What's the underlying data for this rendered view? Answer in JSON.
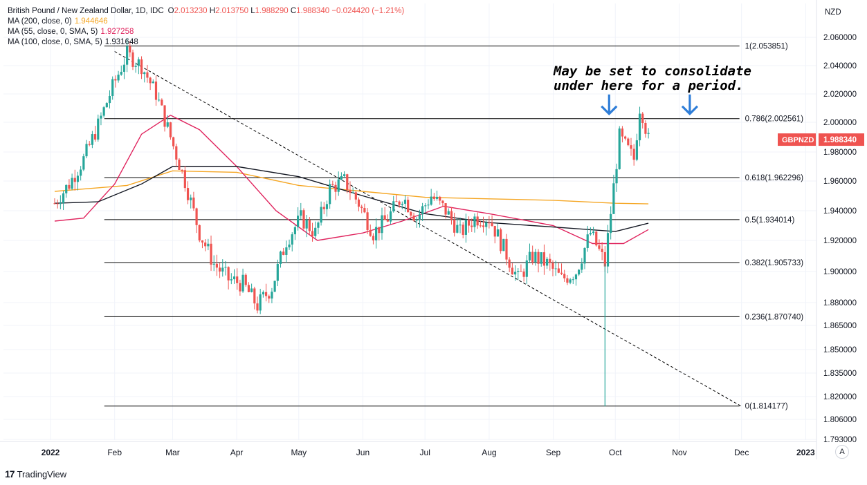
{
  "header": {
    "symbol": "British Pound / New Zealand Dollar, 1D, IDC",
    "o_label": "O",
    "o_value": "2.013230",
    "h_label": "H",
    "h_value": "2.013750",
    "l_label": "L",
    "l_value": "1.988290",
    "c_label": "C",
    "c_value": "1.988340",
    "change": "−0.024420 (−1.21%)"
  },
  "indicators": [
    {
      "label": "MA (200, close, 0)",
      "value": "1.944646",
      "color": "#f5a623"
    },
    {
      "label": "MA (55, close, 0, SMA, 5)",
      "value": "1.927258",
      "color": "#e0245e"
    },
    {
      "label": "MA (100, close, 0, SMA, 5)",
      "value": "1.931648",
      "color": "#131722"
    }
  ],
  "annotation": {
    "line1": "May be set to consolidate",
    "line2": "under here for a period."
  },
  "branding": {
    "name": "TradingView"
  },
  "auto_button": "A",
  "colors": {
    "up": "#26a69a",
    "down": "#ef5350",
    "price_tag": "#ef5350",
    "arrow": "#2f7ed8"
  },
  "chart_data": {
    "type": "candlestick",
    "currency": "NZD",
    "symbol_tag": "GBPNZD",
    "last_price": "1.988340",
    "y_axis_ticks": [
      "2.060000",
      "2.040000",
      "2.020000",
      "2.000000",
      "1.980000",
      "1.960000",
      "1.940000",
      "1.920000",
      "1.900000",
      "1.880000",
      "1.865000",
      "1.850000",
      "1.835000",
      "1.820000",
      "1.806000",
      "1.793000"
    ],
    "x_axis_ticks": [
      "2022",
      "Feb",
      "Mar",
      "Apr",
      "May",
      "Jun",
      "Jul",
      "Aug",
      "Sep",
      "Oct",
      "Nov",
      "Dec",
      "2023"
    ],
    "fib_levels": [
      {
        "ratio": 1,
        "price": 2.053851,
        "label": "1(2.053851)"
      },
      {
        "ratio": 0.786,
        "price": 2.002561,
        "label": "0.786(2.002561)"
      },
      {
        "ratio": 0.618,
        "price": 1.962296,
        "label": "0.618(1.962296)"
      },
      {
        "ratio": 0.5,
        "price": 1.934014,
        "label": "0.5(1.934014)"
      },
      {
        "ratio": 0.382,
        "price": 1.905733,
        "label": "0.382(1.905733)"
      },
      {
        "ratio": 0.236,
        "price": 1.87074,
        "label": "0.236(1.870740)"
      },
      {
        "ratio": 0,
        "price": 1.814177,
        "label": "0(1.814177)"
      }
    ],
    "trendline": {
      "from": {
        "date": "2022-02-01",
        "price": 2.05
      },
      "to": {
        "date": "2022-12-01",
        "price": 1.814
      }
    },
    "arrows": [
      {
        "date": "2022-09-28",
        "price": 2.005
      },
      {
        "date": "2022-11-06",
        "price": 2.005
      }
    ],
    "price_points": [
      {
        "date": "2022-01-03",
        "price": 1.945
      },
      {
        "date": "2022-01-10",
        "price": 1.958
      },
      {
        "date": "2022-01-17",
        "price": 1.975
      },
      {
        "date": "2022-01-24",
        "price": 1.998
      },
      {
        "date": "2022-01-31",
        "price": 2.025
      },
      {
        "date": "2022-02-07",
        "price": 2.048
      },
      {
        "date": "2022-02-14",
        "price": 2.04
      },
      {
        "date": "2022-02-21",
        "price": 2.02
      },
      {
        "date": "2022-02-28",
        "price": 1.99
      },
      {
        "date": "2022-03-07",
        "price": 1.96
      },
      {
        "date": "2022-03-14",
        "price": 1.925
      },
      {
        "date": "2022-03-21",
        "price": 1.905
      },
      {
        "date": "2022-03-28",
        "price": 1.895
      },
      {
        "date": "2022-04-04",
        "price": 1.892
      },
      {
        "date": "2022-04-11",
        "price": 1.878
      },
      {
        "date": "2022-04-18",
        "price": 1.89
      },
      {
        "date": "2022-04-25",
        "price": 1.92
      },
      {
        "date": "2022-05-02",
        "price": 1.935
      },
      {
        "date": "2022-05-09",
        "price": 1.925
      },
      {
        "date": "2022-05-16",
        "price": 1.955
      },
      {
        "date": "2022-05-23",
        "price": 1.96
      },
      {
        "date": "2022-05-30",
        "price": 1.945
      },
      {
        "date": "2022-06-06",
        "price": 1.925
      },
      {
        "date": "2022-06-13",
        "price": 1.935
      },
      {
        "date": "2022-06-20",
        "price": 1.95
      },
      {
        "date": "2022-06-27",
        "price": 1.935
      },
      {
        "date": "2022-07-04",
        "price": 1.95
      },
      {
        "date": "2022-07-11",
        "price": 1.94
      },
      {
        "date": "2022-07-18",
        "price": 1.925
      },
      {
        "date": "2022-07-25",
        "price": 1.935
      },
      {
        "date": "2022-08-01",
        "price": 1.935
      },
      {
        "date": "2022-08-08",
        "price": 1.915
      },
      {
        "date": "2022-08-15",
        "price": 1.895
      },
      {
        "date": "2022-08-22",
        "price": 1.91
      },
      {
        "date": "2022-08-29",
        "price": 1.905
      },
      {
        "date": "2022-09-05",
        "price": 1.895
      },
      {
        "date": "2022-09-12",
        "price": 1.9
      },
      {
        "date": "2022-09-19",
        "price": 1.925
      },
      {
        "date": "2022-09-26",
        "price": 1.905
      },
      {
        "date": "2022-10-03",
        "price": 1.99
      },
      {
        "date": "2022-10-10",
        "price": 1.975
      },
      {
        "date": "2022-10-13",
        "price": 2.013
      },
      {
        "date": "2022-10-17",
        "price": 1.988
      }
    ],
    "ma200": [
      {
        "date": "2022-01-03",
        "price": 1.953
      },
      {
        "date": "2022-02-07",
        "price": 1.957
      },
      {
        "date": "2022-03-01",
        "price": 1.967
      },
      {
        "date": "2022-04-01",
        "price": 1.966
      },
      {
        "date": "2022-05-01",
        "price": 1.957
      },
      {
        "date": "2022-06-01",
        "price": 1.953
      },
      {
        "date": "2022-07-01",
        "price": 1.949
      },
      {
        "date": "2022-08-01",
        "price": 1.948
      },
      {
        "date": "2022-09-01",
        "price": 1.947
      },
      {
        "date": "2022-10-01",
        "price": 1.945
      },
      {
        "date": "2022-10-17",
        "price": 1.9446
      }
    ],
    "ma55": [
      {
        "date": "2022-01-03",
        "price": 1.933
      },
      {
        "date": "2022-01-17",
        "price": 1.935
      },
      {
        "date": "2022-02-01",
        "price": 1.958
      },
      {
        "date": "2022-02-14",
        "price": 1.992
      },
      {
        "date": "2022-02-28",
        "price": 2.005
      },
      {
        "date": "2022-03-14",
        "price": 1.995
      },
      {
        "date": "2022-04-01",
        "price": 1.97
      },
      {
        "date": "2022-04-20",
        "price": 1.94
      },
      {
        "date": "2022-05-10",
        "price": 1.92
      },
      {
        "date": "2022-06-01",
        "price": 1.925
      },
      {
        "date": "2022-06-20",
        "price": 1.933
      },
      {
        "date": "2022-07-10",
        "price": 1.943
      },
      {
        "date": "2022-08-01",
        "price": 1.938
      },
      {
        "date": "2022-09-01",
        "price": 1.93
      },
      {
        "date": "2022-09-20",
        "price": 1.918
      },
      {
        "date": "2022-10-05",
        "price": 1.918
      },
      {
        "date": "2022-10-17",
        "price": 1.9273
      }
    ],
    "ma100": [
      {
        "date": "2022-01-03",
        "price": 1.945
      },
      {
        "date": "2022-01-24",
        "price": 1.946
      },
      {
        "date": "2022-02-14",
        "price": 1.958
      },
      {
        "date": "2022-03-01",
        "price": 1.97
      },
      {
        "date": "2022-04-01",
        "price": 1.97
      },
      {
        "date": "2022-05-01",
        "price": 1.963
      },
      {
        "date": "2022-06-01",
        "price": 1.95
      },
      {
        "date": "2022-07-01",
        "price": 1.938
      },
      {
        "date": "2022-08-01",
        "price": 1.932
      },
      {
        "date": "2022-09-01",
        "price": 1.929
      },
      {
        "date": "2022-10-01",
        "price": 1.926
      },
      {
        "date": "2022-10-17",
        "price": 1.9316
      }
    ],
    "spike_low": {
      "date": "2022-09-26",
      "price": 1.814
    }
  }
}
